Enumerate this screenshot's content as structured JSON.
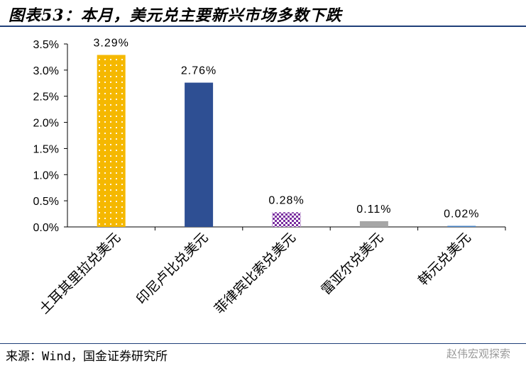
{
  "header": {
    "title": "图表53：本月，美元兑主要新兴市场多数下跌"
  },
  "footer": {
    "source": "来源：Wind，国金证券研究所",
    "watermark": "赵伟宏观探索"
  },
  "chart_data": {
    "type": "bar",
    "title": "",
    "xlabel": "",
    "ylabel": "",
    "categories": [
      "土耳其里拉兑美元",
      "印尼卢比兑美元",
      "菲律宾比索兑美元",
      "雷亚尔兑美元",
      "韩元兑美元"
    ],
    "values": [
      3.29,
      2.76,
      0.28,
      0.11,
      0.02
    ],
    "data_labels": [
      "3.29%",
      "2.76%",
      "0.28%",
      "0.11%",
      "0.02%"
    ],
    "ylim": [
      0,
      3.5
    ],
    "yticks": [
      "0.0%",
      "0.5%",
      "1.0%",
      "1.5%",
      "2.0%",
      "2.5%",
      "3.0%",
      "3.5%"
    ],
    "colors": [
      "#f5b800",
      "#2e4f93",
      "#7a2fa0",
      "#a6a6a6",
      "#4a86c8"
    ],
    "grid": false,
    "legend": "none"
  }
}
